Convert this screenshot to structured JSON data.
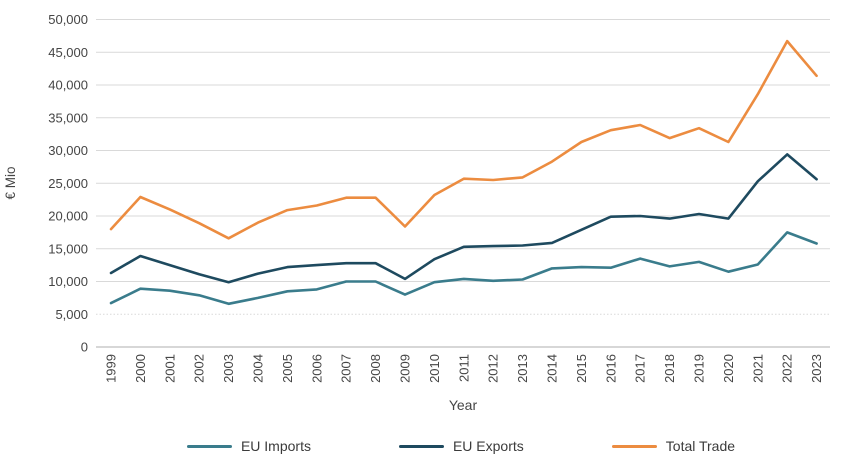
{
  "chart_data": {
    "type": "line",
    "title": "",
    "xlabel": "Year",
    "ylabel": "€ Mio",
    "x": [
      "1999",
      "2000",
      "2001",
      "2002",
      "2003",
      "2004",
      "2005",
      "2006",
      "2007",
      "2008",
      "2009",
      "2010",
      "2011",
      "2012",
      "2013",
      "2014",
      "2015",
      "2016",
      "2017",
      "2018",
      "2019",
      "2020",
      "2021",
      "2022",
      "2023"
    ],
    "series": [
      {
        "name": "EU Imports",
        "color": "#3A7C8C",
        "values": [
          6700,
          8900,
          8600,
          7900,
          6600,
          7500,
          8500,
          8800,
          10000,
          10000,
          8000,
          9900,
          10400,
          10100,
          10300,
          12000,
          12200,
          12100,
          13500,
          12300,
          13000,
          11500,
          12600,
          17500,
          15800
        ]
      },
      {
        "name": "EU Exports",
        "color": "#1E4A5F",
        "values": [
          11300,
          13900,
          12500,
          11100,
          9900,
          11200,
          12200,
          12500,
          12800,
          12800,
          10400,
          13400,
          15300,
          15400,
          15500,
          15900,
          17900,
          19900,
          20000,
          19600,
          20300,
          19600,
          25300,
          29400,
          25600
        ]
      },
      {
        "name": "Total Trade",
        "color": "#EC8C40",
        "values": [
          18000,
          22900,
          21000,
          18900,
          16600,
          19000,
          20900,
          21600,
          22800,
          22800,
          18400,
          23200,
          25700,
          25500,
          25900,
          28300,
          31300,
          33100,
          33900,
          31900,
          33400,
          31300,
          38600,
          46700,
          41400
        ]
      }
    ],
    "ylim": [
      0,
      50000
    ],
    "ytick_step": 5000,
    "ytick_labels": [
      "0",
      "5,000",
      "10,000",
      "15,000",
      "20,000",
      "25,000",
      "30,000",
      "35,000",
      "40,000",
      "45,000",
      "50,000"
    ],
    "grid": true,
    "legend_position": "bottom"
  },
  "colors": {
    "gridline": "#D9D9D9",
    "axis_line": "#BFBFBF",
    "tick_label": "#454545",
    "axis_title": "#454545"
  }
}
